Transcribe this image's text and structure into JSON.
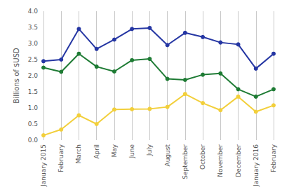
{
  "chart_data": {
    "type": "line",
    "y_label": "Billions of $USD",
    "categories": [
      "January 2015",
      "February",
      "March",
      "April",
      "May",
      "June",
      "July",
      "August",
      "September",
      "October",
      "November",
      "December",
      "January 2016",
      "February"
    ],
    "series": [
      {
        "color": "#2536a3",
        "marker": "circle",
        "values": [
          2.45,
          2.5,
          3.45,
          2.83,
          3.12,
          3.45,
          3.48,
          2.95,
          3.33,
          3.2,
          3.03,
          2.97,
          2.22,
          2.68
        ]
      },
      {
        "color": "#1e7b34",
        "marker": "circle",
        "values": [
          2.25,
          2.12,
          2.68,
          2.28,
          2.13,
          2.48,
          2.52,
          1.9,
          1.87,
          2.03,
          2.07,
          1.58,
          1.35,
          1.58
        ]
      },
      {
        "color": "#f2cf3b",
        "marker": "circle",
        "values": [
          0.15,
          0.33,
          0.77,
          0.5,
          0.95,
          0.96,
          0.97,
          1.03,
          1.43,
          1.15,
          0.93,
          1.35,
          0.88,
          1.08
        ]
      }
    ],
    "ylim": [
      0,
      4
    ],
    "yticks": [
      {
        "value": 0,
        "label": "0.0"
      },
      0.5,
      {
        "value": 1,
        "label": "1.0"
      },
      1.5,
      {
        "value": 2,
        "label": "2.0"
      },
      2.5,
      {
        "value": 3,
        "label": "3.0"
      },
      3.5,
      {
        "value": 4,
        "label": "4.0"
      }
    ],
    "grid": true
  }
}
